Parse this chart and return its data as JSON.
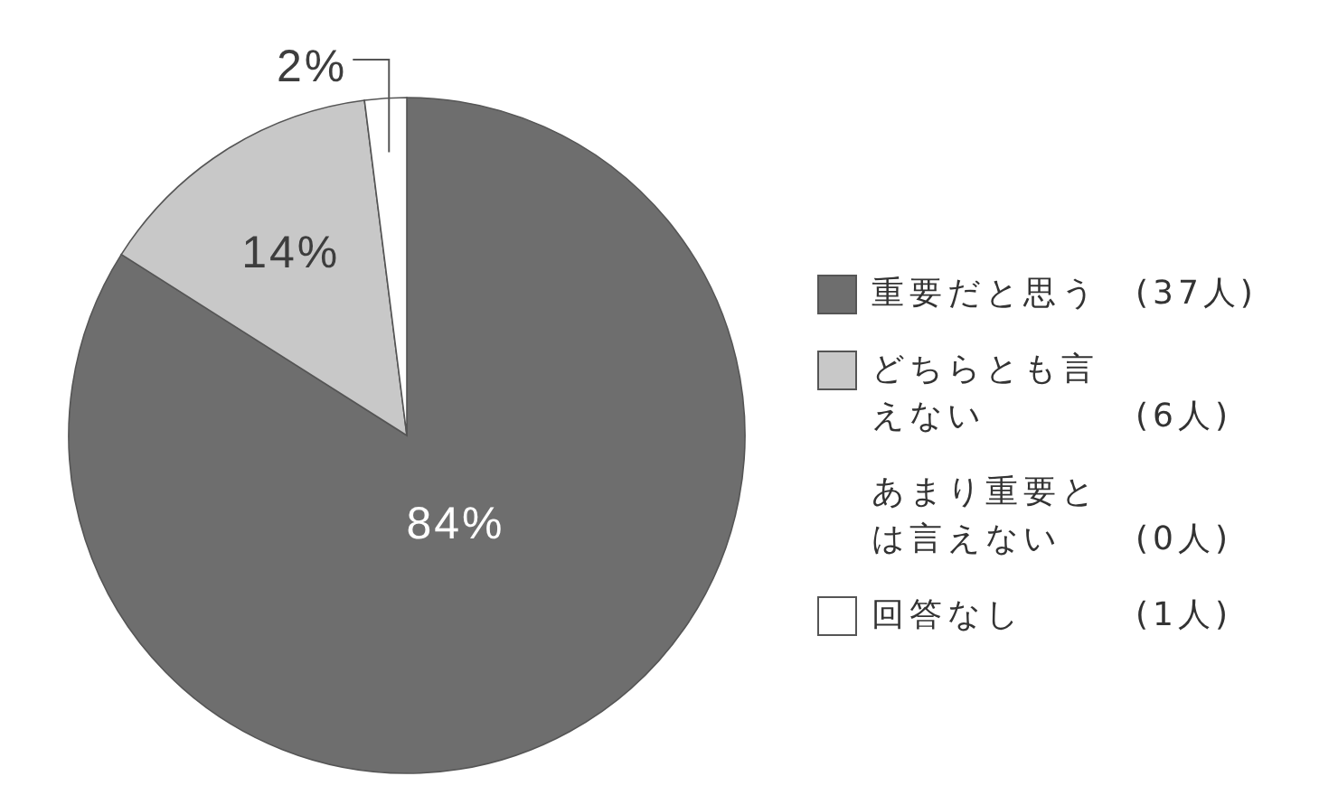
{
  "chart_data": {
    "type": "pie",
    "categories": [
      "重要だと思う (37人)",
      "どちらとも言えない (6人)",
      "あまり重要とは言えない (0人)",
      "回答なし (1人)"
    ],
    "values": [
      84,
      14,
      0,
      2
    ],
    "colors": [
      "#6e6e6e",
      "#c8c8c8",
      null,
      "#ffffff"
    ],
    "value_labels": [
      "84%",
      "14%",
      null,
      "2%"
    ],
    "legend": "right"
  }
}
